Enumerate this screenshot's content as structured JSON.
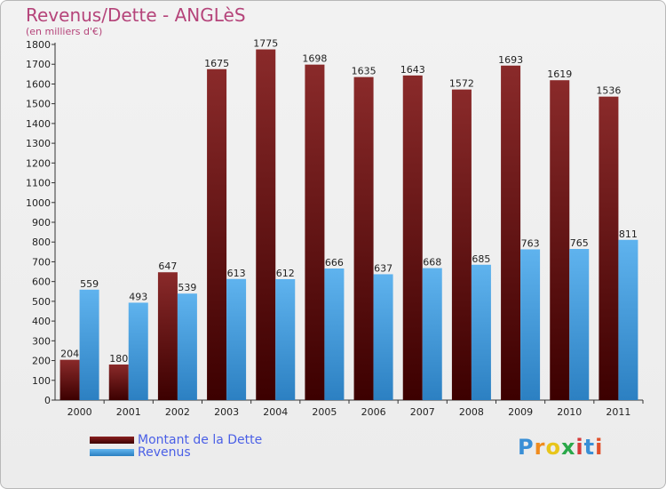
{
  "chart_data": {
    "type": "bar",
    "title": "Revenus/Dette - ANGLèS",
    "subtitle": "(en milliers d'€)",
    "categories": [
      "2000",
      "2001",
      "2002",
      "2003",
      "2004",
      "2005",
      "2006",
      "2007",
      "2008",
      "2009",
      "2010",
      "2011"
    ],
    "series": [
      {
        "name": "Montant de la Dette",
        "color": "#7a1414",
        "values": [
          204,
          180,
          647,
          1675,
          1775,
          1698,
          1635,
          1643,
          1572,
          1693,
          1619,
          1536
        ]
      },
      {
        "name": "Revenus",
        "color": "#4aa3e6",
        "values": [
          559,
          493,
          539,
          613,
          612,
          666,
          637,
          668,
          685,
          763,
          765,
          811
        ]
      }
    ],
    "ylim": [
      0,
      1800
    ],
    "yticks": [
      0,
      100,
      200,
      300,
      400,
      500,
      600,
      700,
      800,
      900,
      1000,
      1100,
      1200,
      1300,
      1400,
      1500,
      1600,
      1700,
      1800
    ],
    "grid": false,
    "legend_position": "bottom-left",
    "data_labels": true
  },
  "logo": {
    "text": "Proxiti",
    "colors": [
      "#3a8fd6",
      "#f08c1e",
      "#e8c51a",
      "#2aa84a",
      "#d63a3a",
      "#3a8fd6",
      "#e0502a"
    ]
  }
}
